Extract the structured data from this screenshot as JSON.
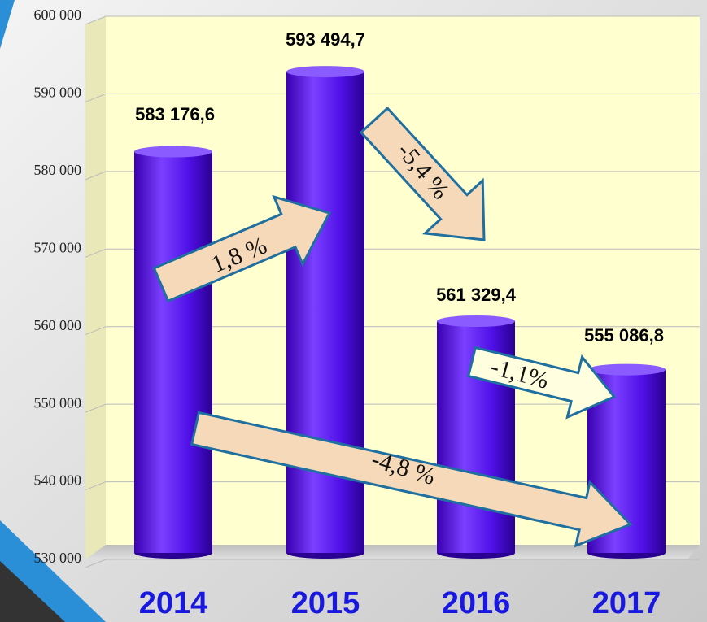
{
  "chart_data": {
    "type": "bar",
    "categories": [
      "2014",
      "2015",
      "2016",
      "2017"
    ],
    "values": [
      583176.6,
      593494.7,
      561329.4,
      555086.8
    ],
    "value_labels": [
      "583 176,6",
      "593 494,7",
      "561 329,4",
      "555 086,8"
    ],
    "color": "#5a10f0",
    "ylim": [
      530000,
      600000
    ],
    "yticks": [
      {
        "value": 530000,
        "label": "530 000"
      },
      {
        "value": 540000,
        "label": "540 000"
      },
      {
        "value": 550000,
        "label": "550 000"
      },
      {
        "value": 560000,
        "label": "560 000"
      },
      {
        "value": 570000,
        "label": "570 000"
      },
      {
        "value": 580000,
        "label": "580 000"
      },
      {
        "value": 590000,
        "label": "590 000"
      },
      {
        "value": 600000,
        "label": "600 000"
      }
    ],
    "grid": true,
    "annotations": [
      "1,8 %",
      "-5,4 %",
      "-1,1%",
      "-4,8 %"
    ]
  }
}
